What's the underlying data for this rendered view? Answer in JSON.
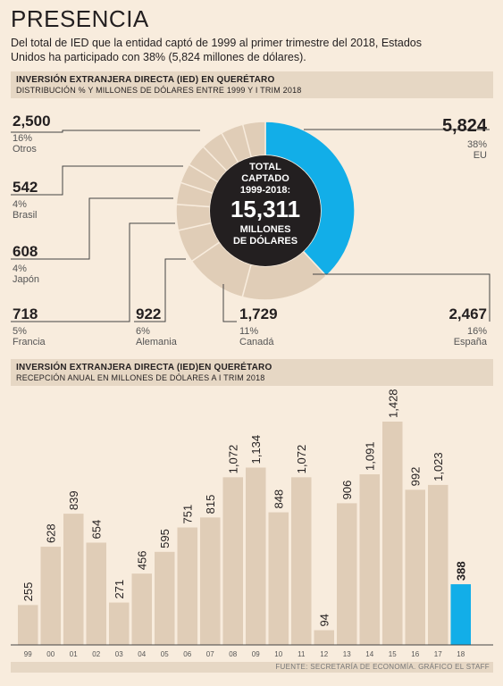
{
  "title": "PRESENCIA",
  "intro": "Del total de IED que la entidad captó de 1999 al primer trimestre del 2018, Estados Unidos ha participado con 38% (5,824 millones de dólares).",
  "section1": {
    "heading": "INVERSIÓN EXTRANJERA DIRECTA (IED) EN QUERÉTARO",
    "subheading": "DISTRIBUCIÓN % Y MILLONES DE DÓLARES ENTRE 1999 Y I TRIM 2018"
  },
  "section2": {
    "heading": "INVERSIÓN EXTRANJERA DIRECTA (IED)EN QUERÉTARO",
    "subheading": "RECEPCIÓN ANUAL EN MILLONES DE DÓLARES A I TRIM 2018"
  },
  "donut_center": {
    "line1": "TOTAL",
    "line2": "CAPTADO",
    "line3": "1999-2018:",
    "total": "15,311",
    "line4": "MILLONES",
    "line5": "DE DÓLARES"
  },
  "footer": "FUENTE: SECRETARÍA DE ECONOMÍA. GRÁFICO EL STAFF",
  "colors": {
    "background": "#f8ecdd",
    "highlight": "#12aee8",
    "bar": "#e0cdb7",
    "donut_other": "#e0cdb7",
    "center": "#231f20",
    "header": "#e6d7c4"
  },
  "chart_data": [
    {
      "type": "pie",
      "donut": true,
      "title": "INVERSIÓN EXTRANJERA DIRECTA (IED) EN QUERÉTARO",
      "subtitle": "DISTRIBUCIÓN % Y MILLONES DE DÓLARES ENTRE 1999 Y I TRIM 2018",
      "slices": [
        {
          "name": "EU",
          "value": 5824,
          "value_label": "5,824",
          "percent": "38%",
          "highlight": true
        },
        {
          "name": "España",
          "value": 2467,
          "value_label": "2,467",
          "percent": "16%"
        },
        {
          "name": "Canadá",
          "value": 1729,
          "value_label": "1,729",
          "percent": "11%"
        },
        {
          "name": "Alemania",
          "value": 922,
          "value_label": "922",
          "percent": "6%"
        },
        {
          "name": "Francia",
          "value": 718,
          "value_label": "718",
          "percent": "5%"
        },
        {
          "name": "Japón",
          "value": 608,
          "value_label": "608",
          "percent": "4%"
        },
        {
          "name": "Brasil",
          "value": 542,
          "value_label": "542",
          "percent": "4%"
        },
        {
          "name": "Otros",
          "value": 2500,
          "value_label": "2,500",
          "percent": "16%"
        }
      ]
    },
    {
      "type": "bar",
      "title": "INVERSIÓN EXTRANJERA DIRECTA (IED)EN QUERÉTARO",
      "subtitle": "RECEPCIÓN ANUAL EN MILLONES DE DÓLARES A I TRIM 2018",
      "categories": [
        "99",
        "00",
        "01",
        "02",
        "03",
        "04",
        "05",
        "06",
        "07",
        "08",
        "09",
        "10",
        "11",
        "12",
        "13",
        "14",
        "15",
        "16",
        "17",
        "18"
      ],
      "values": [
        255,
        628,
        839,
        654,
        271,
        456,
        595,
        751,
        815,
        1072,
        1134,
        848,
        1072,
        94,
        906,
        1091,
        1428,
        992,
        1023,
        388
      ],
      "value_labels": [
        "255",
        "628",
        "839",
        "654",
        "271",
        "456",
        "595",
        "751",
        "815",
        "1,072",
        "1,134",
        "848",
        "1,072",
        "94",
        "906",
        "1,091",
        "1,428",
        "992",
        "1,023",
        "388"
      ],
      "highlight_index": 19,
      "ylim": [
        0,
        1500
      ]
    }
  ]
}
